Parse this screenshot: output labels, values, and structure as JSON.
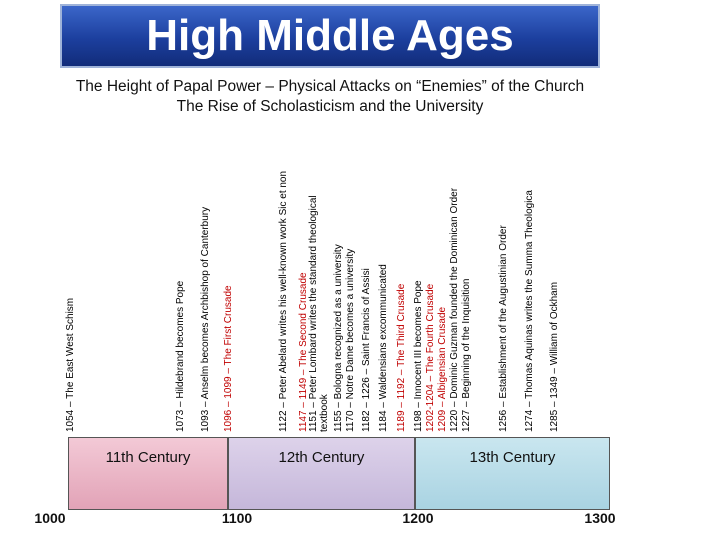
{
  "header": {
    "title": "High Middle Ages",
    "subtitle_lines": [
      "The Height of Papal Power – Physical Attacks on “Enemies” of the Church",
      "The Rise of Scholasticism and the University"
    ]
  },
  "events": [
    {
      "label": "1054 – The East West Schism",
      "color": "#000000"
    },
    {
      "label": "1073 – Hildebrand becomes Pope",
      "color": "#000000"
    },
    {
      "label": "1093 – Anselm becomes Archbishop of Canterbury",
      "color": "#000000"
    },
    {
      "label": "1096 – 1099 – The First Crusade",
      "color": "#c00000"
    },
    {
      "label": "1122 – Peter Abelard writes his well-known work Sic et non",
      "color": "#000000"
    },
    {
      "label": "1147 – 1149 – The Second Crusade",
      "color": "#c00000"
    },
    {
      "label": "1151 – Peter Lombard writes the standard theological textbook",
      "color": "#000000"
    },
    {
      "label": "1155 – Bologna recognized as a university",
      "color": "#000000"
    },
    {
      "label": "1170 – Notre Dame becomes a university",
      "color": "#000000"
    },
    {
      "label": "1182 – 1226 – Saint Francis of Assisi",
      "color": "#000000"
    },
    {
      "label": "1184 – Waldensians excommunicated",
      "color": "#000000"
    },
    {
      "label": "1189 – 1192 – The Third Crusade",
      "color": "#c00000"
    },
    {
      "label": "1198 – Innocent III becomes Pope",
      "color": "#000000"
    },
    {
      "label": "1202-1204 – The Fourth Crusade",
      "color": "#c00000"
    },
    {
      "label": "1209 – Albigensian Crusade",
      "color": "#c00000"
    },
    {
      "label": "1220 – Dominic Guzman founded the Dominican Order",
      "color": "#000000"
    },
    {
      "label": "1227 – Beginning of the Inquisition",
      "color": "#000000"
    },
    {
      "label": "1256 – Establishment of the Augustinian Order",
      "color": "#000000"
    },
    {
      "label": "1274 – Thomas Aquinas writes the Summa Theologica",
      "color": "#000000"
    },
    {
      "label": "1285 – 1349 – William of Ockham",
      "color": "#000000"
    }
  ],
  "centuries": [
    "11th Century",
    "12th Century",
    "13th Century"
  ],
  "years": [
    "1000",
    "1100",
    "1200",
    "1300"
  ]
}
